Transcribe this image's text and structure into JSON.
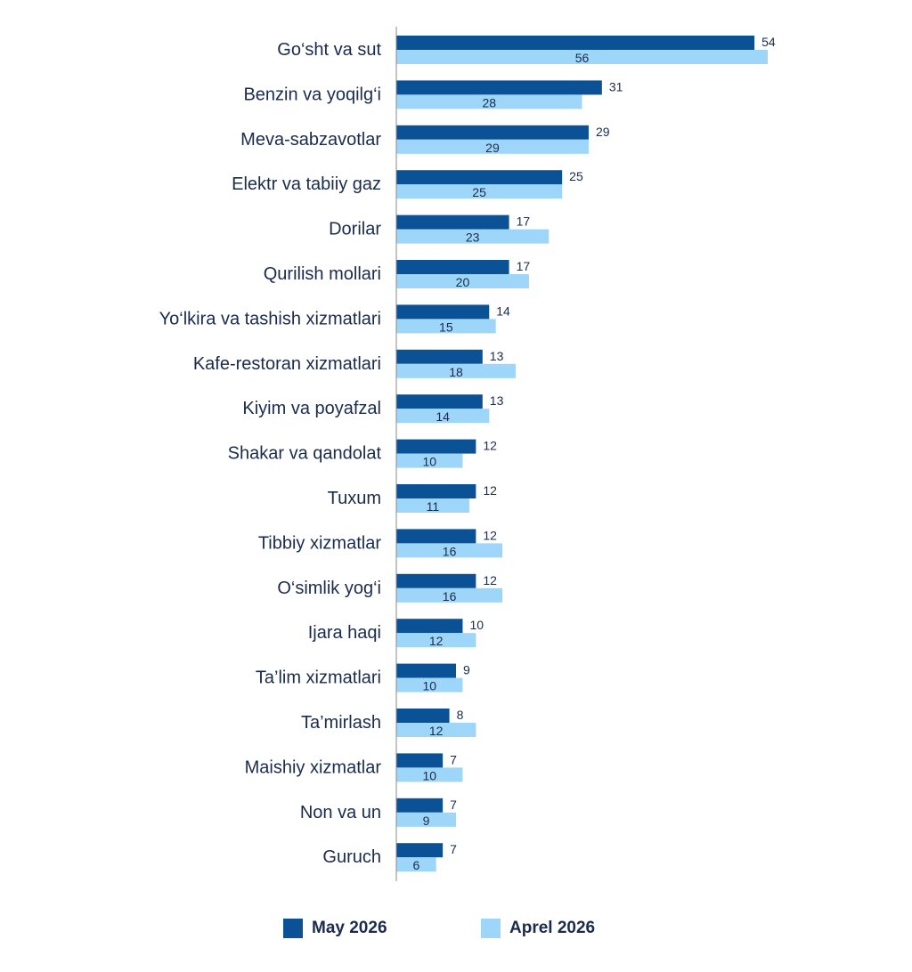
{
  "chart_data": {
    "type": "bar",
    "orientation": "horizontal",
    "categories": [
      "Go‘sht va sut",
      "Benzin va yoqilg‘i",
      "Meva-sabzavotlar",
      "Elektr va tabiiy gaz",
      "Dorilar",
      "Qurilish mollari",
      "Yo‘lkira va tashish xizmatlari",
      "Kafe-restoran xizmatlari",
      "Kiyim va poyafzal",
      "Shakar va qandolat",
      "Tuxum",
      "Tibbiy xizmatlar",
      "O‘simlik yog‘i",
      "Ijara haqi",
      "Ta’lim xizmatlari",
      "Ta’mirlash",
      "Maishiy xizmatlar",
      "Non va un",
      "Guruch"
    ],
    "series": [
      {
        "name": "May 2026",
        "color": "#0b5195",
        "values": [
          54,
          31,
          29,
          25,
          17,
          17,
          14,
          13,
          13,
          12,
          12,
          12,
          12,
          10,
          9,
          8,
          7,
          7,
          7
        ]
      },
      {
        "name": "Aprel 2026",
        "color": "#9dd6f8",
        "values": [
          56,
          28,
          29,
          25,
          23,
          20,
          15,
          18,
          14,
          10,
          11,
          16,
          16,
          12,
          10,
          12,
          10,
          9,
          6
        ]
      }
    ],
    "xlim": [
      0,
      56
    ],
    "grid": false,
    "legend_position": "bottom"
  }
}
